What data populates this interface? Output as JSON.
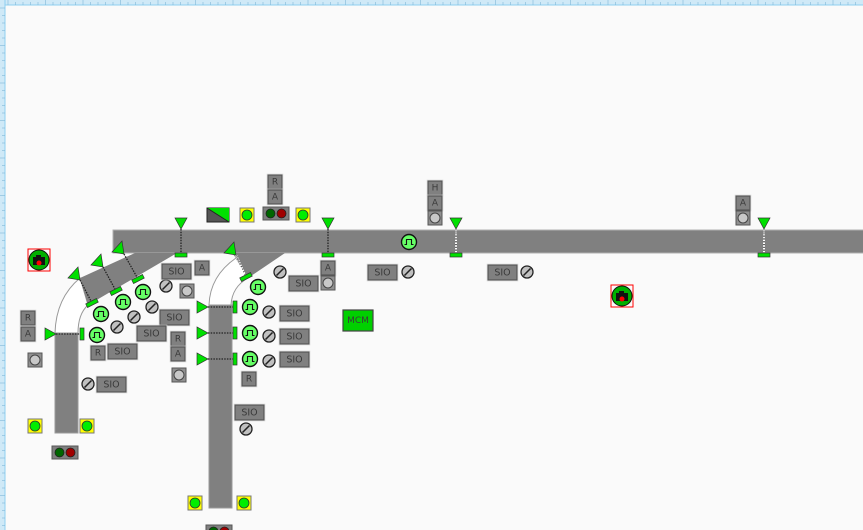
{
  "labels": {
    "sio": "SIO",
    "auto": "A",
    "reset": "R",
    "hand": "H",
    "mcm": "MCM"
  },
  "colors": {
    "background": "#fafafa",
    "conveyor": "#808080",
    "active_green": "#00e000",
    "motor_green": "#66ff66",
    "lamp_yellow": "#ffff00",
    "fault_red": "#ff0000",
    "disabled_gray": "#c0c0c0",
    "ruler": "#bfe3f5"
  },
  "icons": {
    "photo_eye": "triangle-photo-eye-icon",
    "motor": "motor-pulse-icon",
    "disabled": "disabled-slash-icon",
    "camera": "camera-icon",
    "lamp": "indicator-lamp-icon",
    "stack_light": "red-green-lamp-icon",
    "diverter": "diverter-icon"
  }
}
